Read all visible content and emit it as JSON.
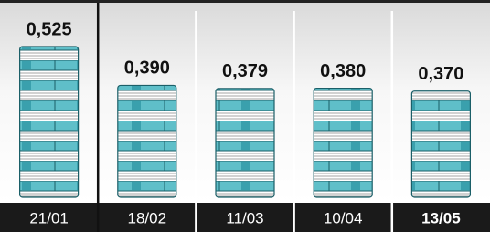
{
  "chart_data": {
    "type": "bar",
    "categories": [
      "21/01",
      "18/02",
      "11/03",
      "10/04",
      "13/05"
    ],
    "values": [
      0.525,
      0.39,
      0.379,
      0.38,
      0.37
    ],
    "value_labels": [
      "0,525",
      "0,390",
      "0,379",
      "0,380",
      "0,370"
    ],
    "color": "#5fbfc9"
  }
}
